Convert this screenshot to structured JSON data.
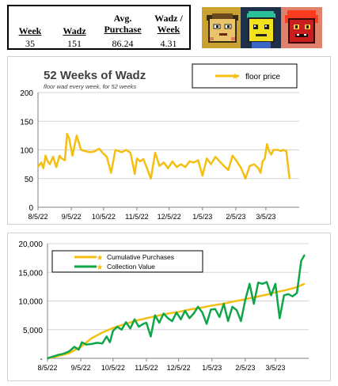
{
  "stats": {
    "headers": [
      "Week",
      "Wadz",
      "Avg.\nPurchase",
      "Wadz /\nWeek"
    ],
    "header_lines": [
      [
        "Week"
      ],
      [
        "Wadz"
      ],
      [
        "Avg.",
        "Purchase"
      ],
      [
        "Wadz /",
        "Week"
      ]
    ],
    "values": [
      "35",
      "151",
      "86.24",
      "4.31"
    ]
  },
  "avatars": [
    {
      "name": "wad-avatar-yellow-cat",
      "bg": "#c9a232"
    },
    {
      "name": "wad-avatar-green-hair",
      "bg": "#1f2f4a"
    },
    {
      "name": "wad-avatar-red-hair",
      "bg": "#e0826b"
    }
  ],
  "colors": {
    "gold": "#f5bf12",
    "green": "#0fa64a",
    "grid": "#d4d4d4"
  },
  "chart_data": [
    {
      "type": "line",
      "title": "52 Weeks of Wadz",
      "subtitle": "floor wad every week, for 52 weeks",
      "legend": [
        "floor price"
      ],
      "legend_position": "top-right",
      "xlabel": "",
      "ylabel": "",
      "ylim": [
        0,
        200
      ],
      "yticks": [
        "0",
        "50",
        "100",
        "150",
        "200"
      ],
      "xlim": [
        "2022-08-05",
        "2023-04-05"
      ],
      "xticks": [
        "8/5/22",
        "9/5/22",
        "10/5/22",
        "11/5/22",
        "12/5/22",
        "1/5/23",
        "2/5/23",
        "3/5/23"
      ],
      "xtick_dates": [
        "2022-08-05",
        "2022-09-05",
        "2022-10-05",
        "2022-11-05",
        "2022-12-05",
        "2023-01-05",
        "2023-02-05",
        "2023-03-05"
      ],
      "series": [
        {
          "name": "floor price",
          "color": "#f5bf12",
          "x": [
            "2022-08-05",
            "2022-08-08",
            "2022-08-10",
            "2022-08-12",
            "2022-08-14",
            "2022-08-16",
            "2022-08-19",
            "2022-08-22",
            "2022-08-25",
            "2022-08-27",
            "2022-08-30",
            "2022-09-01",
            "2022-09-03",
            "2022-09-06",
            "2022-09-10",
            "2022-09-14",
            "2022-09-18",
            "2022-09-22",
            "2022-09-26",
            "2022-09-29",
            "2022-10-01",
            "2022-10-04",
            "2022-10-08",
            "2022-10-12",
            "2022-10-16",
            "2022-10-19",
            "2022-10-22",
            "2022-10-26",
            "2022-10-30",
            "2022-11-03",
            "2022-11-05",
            "2022-11-08",
            "2022-11-11",
            "2022-11-14",
            "2022-11-18",
            "2022-11-22",
            "2022-11-26",
            "2022-11-30",
            "2022-12-04",
            "2022-12-08",
            "2022-12-12",
            "2022-12-16",
            "2022-12-20",
            "2022-12-24",
            "2022-12-28",
            "2023-01-01",
            "2023-01-05",
            "2023-01-09",
            "2023-01-13",
            "2023-01-17",
            "2023-01-21",
            "2023-01-25",
            "2023-01-29",
            "2023-02-02",
            "2023-02-06",
            "2023-02-10",
            "2023-02-14",
            "2023-02-18",
            "2023-02-22",
            "2023-02-26",
            "2023-02-28",
            "2023-03-02",
            "2023-03-04",
            "2023-03-06",
            "2023-03-08",
            "2023-03-10",
            "2023-03-12",
            "2023-03-14",
            "2023-03-16",
            "2023-03-19",
            "2023-03-21",
            "2023-03-24",
            "2023-03-27"
          ],
          "y": [
            70,
            78,
            68,
            90,
            80,
            75,
            88,
            70,
            90,
            85,
            82,
            128,
            120,
            90,
            125,
            100,
            98,
            96,
            97,
            100,
            102,
            95,
            88,
            60,
            100,
            98,
            96,
            100,
            95,
            58,
            85,
            80,
            84,
            70,
            50,
            95,
            72,
            78,
            68,
            80,
            70,
            75,
            70,
            80,
            78,
            82,
            55,
            85,
            75,
            88,
            80,
            72,
            65,
            90,
            80,
            68,
            50,
            72,
            75,
            68,
            60,
            80,
            85,
            110,
            98,
            92,
            100,
            100,
            100,
            98,
            100,
            98,
            50
          ]
        }
      ]
    },
    {
      "type": "line",
      "title": "",
      "xlabel": "",
      "ylabel": "",
      "legend": [
        "Cumulative Purchases",
        "Collection Value"
      ],
      "legend_position": "top-left",
      "ylim": [
        0,
        20000
      ],
      "yticks": [
        "-",
        "5,000",
        "10,000",
        "15,000",
        "20,000"
      ],
      "xlim": [
        "2022-08-05",
        "2023-04-05"
      ],
      "xticks": [
        "8/5/22",
        "9/5/22",
        "10/5/22",
        "11/5/22",
        "12/5/22",
        "1/5/23",
        "2/5/23",
        "3/5/23"
      ],
      "xtick_dates": [
        "2022-08-05",
        "2022-09-05",
        "2022-10-05",
        "2022-11-05",
        "2022-12-05",
        "2023-01-05",
        "2023-02-05",
        "2023-03-05"
      ],
      "series": [
        {
          "name": "Cumulative Purchases",
          "color": "#f5bf12",
          "x": [
            "2022-08-05",
            "2022-08-15",
            "2022-08-25",
            "2022-09-05",
            "2022-09-15",
            "2022-09-25",
            "2022-10-05",
            "2022-10-15",
            "2022-10-25",
            "2022-11-05",
            "2022-11-15",
            "2022-11-25",
            "2022-12-05",
            "2022-12-15",
            "2022-12-25",
            "2023-01-05",
            "2023-01-15",
            "2023-01-25",
            "2023-02-05",
            "2023-02-15",
            "2023-02-25",
            "2023-03-05",
            "2023-03-15",
            "2023-03-25",
            "2023-04-01"
          ],
          "y": [
            0,
            400,
            900,
            2000,
            3500,
            4500,
            5300,
            5900,
            6500,
            7000,
            7400,
            7800,
            8100,
            8500,
            8800,
            9200,
            9500,
            9900,
            10300,
            10700,
            11100,
            11500,
            11900,
            12400,
            13000
          ]
        },
        {
          "name": "Collection Value",
          "color": "#0fa64a",
          "x": [
            "2022-08-05",
            "2022-08-10",
            "2022-08-15",
            "2022-08-20",
            "2022-08-25",
            "2022-08-30",
            "2022-09-03",
            "2022-09-06",
            "2022-09-10",
            "2022-09-15",
            "2022-09-20",
            "2022-09-25",
            "2022-09-29",
            "2022-10-02",
            "2022-10-05",
            "2022-10-09",
            "2022-10-13",
            "2022-10-17",
            "2022-10-21",
            "2022-10-25",
            "2022-10-29",
            "2022-11-02",
            "2022-11-05",
            "2022-11-09",
            "2022-11-13",
            "2022-11-17",
            "2022-11-21",
            "2022-11-25",
            "2022-11-29",
            "2022-12-03",
            "2022-12-07",
            "2022-12-11",
            "2022-12-15",
            "2022-12-19",
            "2022-12-23",
            "2022-12-27",
            "2022-12-31",
            "2023-01-04",
            "2023-01-08",
            "2023-01-12",
            "2023-01-16",
            "2023-01-20",
            "2023-01-24",
            "2023-01-28",
            "2023-02-01",
            "2023-02-05",
            "2023-02-09",
            "2023-02-13",
            "2023-02-17",
            "2023-02-21",
            "2023-02-25",
            "2023-03-01",
            "2023-03-05",
            "2023-03-09",
            "2023-03-13",
            "2023-03-17",
            "2023-03-21",
            "2023-03-25",
            "2023-03-29",
            "2023-04-01"
          ],
          "y": [
            0,
            300,
            600,
            800,
            1200,
            2000,
            1500,
            2800,
            2400,
            2500,
            2700,
            2600,
            3800,
            2800,
            4800,
            5500,
            5000,
            6300,
            5200,
            6800,
            5500,
            6000,
            6200,
            3800,
            7500,
            6200,
            7800,
            7000,
            6500,
            8000,
            6800,
            8300,
            7000,
            7800,
            9000,
            8000,
            6000,
            8500,
            8600,
            7200,
            9500,
            6500,
            9000,
            8400,
            6500,
            10200,
            13000,
            9500,
            13200,
            13000,
            13300,
            11000,
            13000,
            7000,
            11000,
            11200,
            10800,
            11400,
            17000,
            18000
          ]
        }
      ]
    }
  ]
}
